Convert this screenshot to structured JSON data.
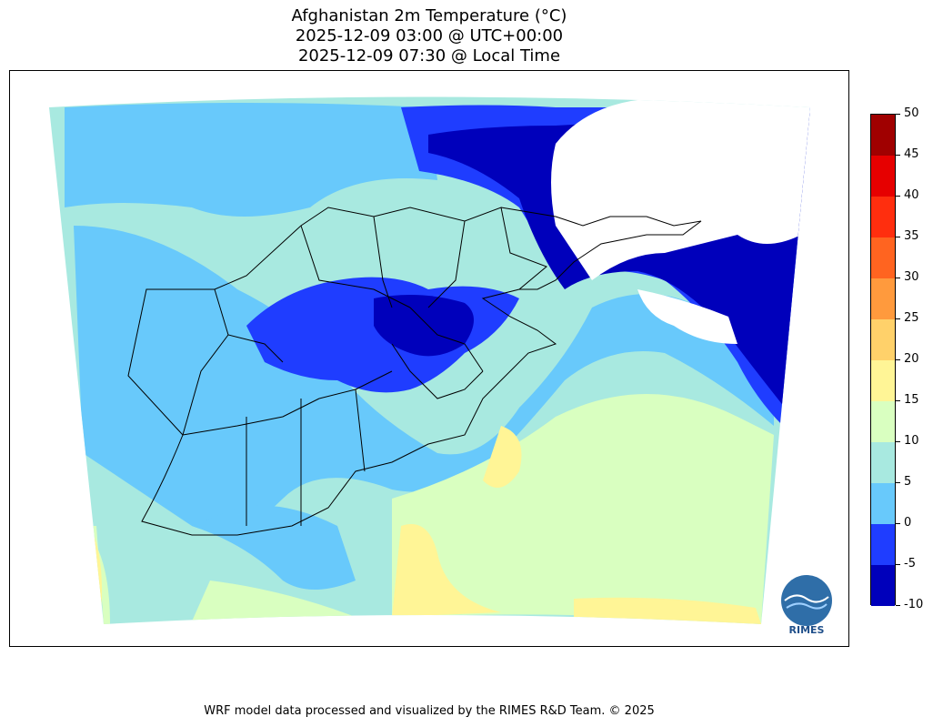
{
  "title": {
    "line1": "Afghanistan 2m Temperature (°C)",
    "line2": "2025-12-09 03:00 @ UTC+00:00",
    "line3": "2025-12-09 07:30 @ Local Time"
  },
  "colorbar": {
    "levels": [
      -10,
      -5,
      0,
      5,
      10,
      15,
      20,
      25,
      30,
      35,
      40,
      45,
      50
    ],
    "labels": [
      "-10",
      "-5",
      "0",
      "5",
      "10",
      "15",
      "20",
      "25",
      "30",
      "35",
      "40",
      "45",
      "50"
    ],
    "colors": [
      "#0000bb",
      "#1f3dff",
      "#68c9fb",
      "#a8e9e0",
      "#d9ffc0",
      "#fff596",
      "#ffd16a",
      "#ff9a3d",
      "#ff6420",
      "#ff2e0e",
      "#e60000",
      "#a00000"
    ]
  },
  "logo": {
    "text": "RIMES"
  },
  "footer": "WRF model data processed and visualized by the RIMES R&D Team. © 2025"
}
